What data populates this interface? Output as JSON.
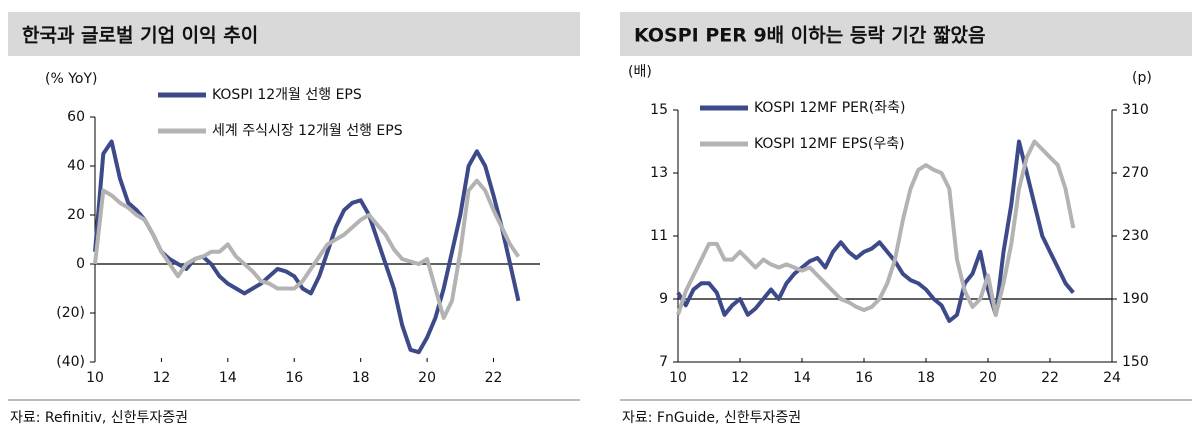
{
  "chart_data": [
    {
      "type": "line",
      "title": "한국과 글로벌 기업 이익 추이",
      "y_label": "(% YoY)",
      "source": "자료: Refinitiv, 신한투자증권",
      "x": [
        10,
        10.25,
        10.5,
        10.75,
        11,
        11.25,
        11.5,
        11.75,
        12,
        12.25,
        12.5,
        12.75,
        13,
        13.25,
        13.5,
        13.75,
        14,
        14.25,
        14.5,
        14.75,
        15,
        15.25,
        15.5,
        15.75,
        16,
        16.25,
        16.5,
        16.75,
        17,
        17.25,
        17.5,
        17.75,
        18,
        18.25,
        18.5,
        18.75,
        19,
        19.25,
        19.5,
        19.75,
        20,
        20.25,
        20.5,
        20.75,
        21,
        21.25,
        21.5,
        21.75,
        22,
        22.25,
        22.5,
        22.75
      ],
      "series": [
        {
          "name": "KOSPI 12개월 선행 EPS",
          "color": "#3d4a8a",
          "values": [
            5,
            45,
            50,
            35,
            25,
            22,
            18,
            12,
            5,
            2,
            0,
            -2,
            2,
            3,
            0,
            -5,
            -8,
            -10,
            -12,
            -10,
            -8,
            -5,
            -2,
            -3,
            -5,
            -10,
            -12,
            -5,
            5,
            15,
            22,
            25,
            26,
            20,
            10,
            0,
            -10,
            -25,
            -35,
            -36,
            -30,
            -22,
            -10,
            5,
            20,
            40,
            46,
            40,
            28,
            15,
            0,
            -15
          ]
        },
        {
          "name": "세계 주식시장 12개월 선행 EPS",
          "color": "#b3b3b3",
          "values": [
            0,
            30,
            28,
            25,
            23,
            20,
            18,
            12,
            5,
            0,
            -5,
            0,
            2,
            3,
            5,
            5,
            8,
            3,
            0,
            -3,
            -7,
            -8,
            -10,
            -10,
            -10,
            -7,
            -2,
            3,
            8,
            10,
            12,
            15,
            18,
            20,
            16,
            12,
            6,
            2,
            1,
            0,
            2,
            -10,
            -22,
            -15,
            5,
            30,
            34,
            30,
            22,
            15,
            8,
            3
          ]
        }
      ],
      "xlim": [
        10,
        23.4
      ],
      "xticks": [
        10,
        12,
        14,
        16,
        18,
        20,
        22
      ],
      "ylim": [
        -40,
        60
      ],
      "yticks": [
        60,
        40,
        20,
        0,
        {
          "value": -20,
          "label": "(20)"
        },
        {
          "value": -40,
          "label": "(40)"
        }
      ],
      "hline": 0
    },
    {
      "type": "line",
      "title": "KOSPI PER 9배 이하는 등락 기간 짧았음",
      "y_label": "(배)",
      "y2_label": "(p)",
      "source": "자료: FnGuide, 신한투자증권",
      "x": [
        10,
        10.25,
        10.5,
        10.75,
        11,
        11.25,
        11.5,
        11.75,
        12,
        12.25,
        12.5,
        12.75,
        13,
        13.25,
        13.5,
        13.75,
        14,
        14.25,
        14.5,
        14.75,
        15,
        15.25,
        15.5,
        15.75,
        16,
        16.25,
        16.5,
        16.75,
        17,
        17.25,
        17.5,
        17.75,
        18,
        18.25,
        18.5,
        18.75,
        19,
        19.25,
        19.5,
        19.75,
        20,
        20.25,
        20.5,
        20.75,
        21,
        21.25,
        21.5,
        21.75,
        22,
        22.25,
        22.5,
        22.75
      ],
      "series": [
        {
          "name": "KOSPI 12MF PER(좌축)",
          "color": "#3d4a8a",
          "values": [
            9.2,
            8.8,
            9.3,
            9.5,
            9.5,
            9.2,
            8.5,
            8.8,
            9.0,
            8.5,
            8.7,
            9.0,
            9.3,
            9.0,
            9.5,
            9.8,
            10.0,
            10.2,
            10.3,
            10.0,
            10.5,
            10.8,
            10.5,
            10.3,
            10.5,
            10.6,
            10.8,
            10.5,
            10.2,
            9.8,
            9.6,
            9.5,
            9.3,
            9.0,
            8.8,
            8.3,
            8.5,
            9.5,
            9.8,
            10.5,
            9.3,
            8.5,
            10.5,
            12,
            14.0,
            13.0,
            12.0,
            11.0,
            10.5,
            10.0,
            9.5,
            9.2
          ]
        },
        {
          "name": "KOSPI 12MF EPS(우축)",
          "color": "#b3b3b3",
          "axis": "y2",
          "values": [
            180,
            195,
            205,
            215,
            225,
            225,
            215,
            215,
            220,
            215,
            210,
            215,
            212,
            210,
            212,
            210,
            208,
            210,
            205,
            200,
            195,
            190,
            188,
            185,
            183,
            185,
            190,
            200,
            215,
            240,
            260,
            272,
            275,
            272,
            270,
            260,
            215,
            195,
            185,
            190,
            205,
            180,
            200,
            225,
            260,
            280,
            290,
            285,
            280,
            275,
            260,
            235
          ]
        }
      ],
      "xlim": [
        10,
        24
      ],
      "xticks": [
        10,
        12,
        14,
        16,
        18,
        20,
        22,
        24
      ],
      "ylim": [
        7,
        15
      ],
      "yticks": [
        7,
        9,
        11,
        13,
        15
      ],
      "y2lim": [
        150,
        310
      ],
      "y2ticks": [
        150,
        190,
        230,
        270,
        310
      ],
      "hline": 9
    }
  ]
}
